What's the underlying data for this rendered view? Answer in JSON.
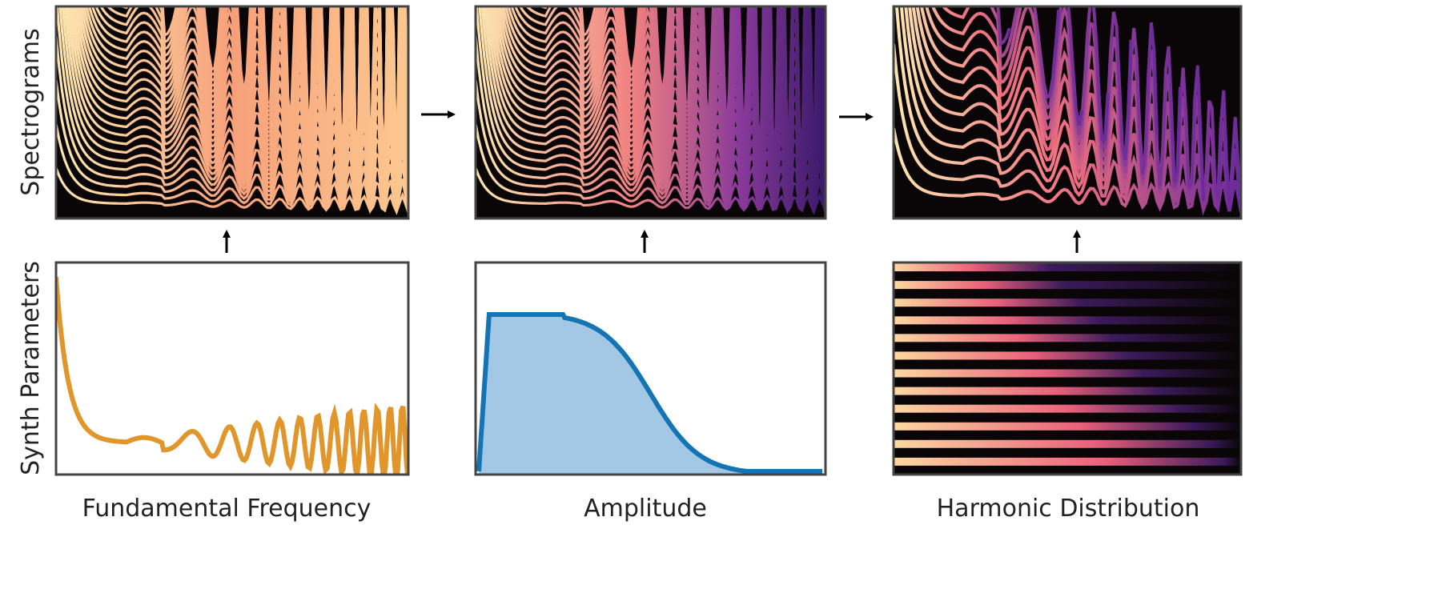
{
  "row_labels": [
    "Spectrograms",
    "Synth Parameters"
  ],
  "panel_labels": [
    "Fundamental Frequency",
    "Amplitude",
    "Harmonic Distribution"
  ]
}
